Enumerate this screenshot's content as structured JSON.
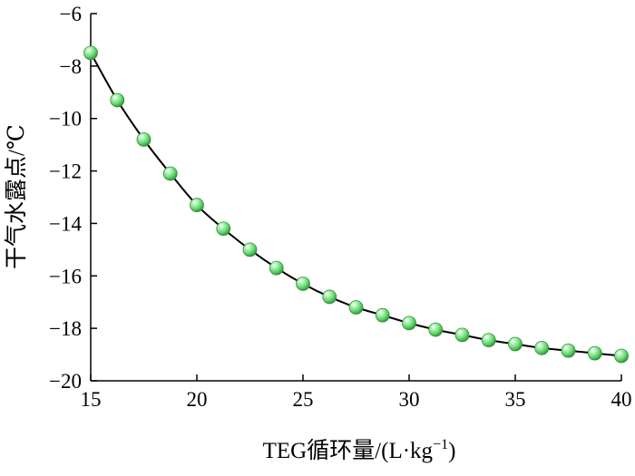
{
  "chart_data": {
    "type": "line",
    "title": "",
    "xlabel": "TEG循环量/(L·kg",
    "xlabel_sup": "−1",
    "xlabel_suffix": ")",
    "ylabel": "干气水露点/℃",
    "xlim": [
      15,
      40
    ],
    "ylim": [
      -20,
      -6
    ],
    "x_ticks": [
      15,
      20,
      25,
      30,
      35,
      40
    ],
    "y_ticks": [
      -6,
      -8,
      -10,
      -12,
      -14,
      -16,
      -18,
      -20
    ],
    "grid": false,
    "marker_color": "#6ee07a",
    "line_color": "#000000",
    "series": [
      {
        "x": [
          15,
          16.25,
          17.5,
          18.75,
          20,
          21.25,
          22.5,
          23.75,
          25,
          26.25,
          27.5,
          28.75,
          30,
          31.25,
          32.5,
          33.75,
          35,
          36.25,
          37.5,
          38.75,
          40
        ],
        "y": [
          -7.5,
          -9.3,
          -10.8,
          -12.1,
          -13.3,
          -14.2,
          -15.0,
          -15.7,
          -16.3,
          -16.8,
          -17.2,
          -17.5,
          -17.8,
          -18.05,
          -18.25,
          -18.45,
          -18.6,
          -18.75,
          -18.85,
          -18.95,
          -19.05
        ]
      }
    ]
  }
}
